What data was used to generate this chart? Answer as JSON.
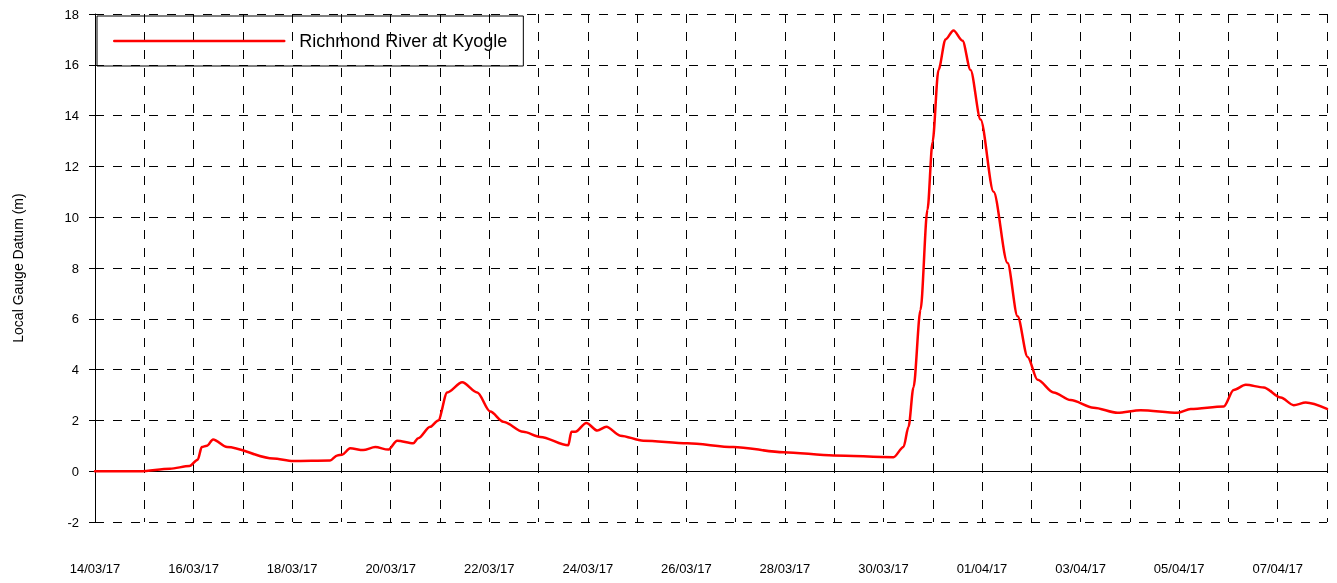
{
  "chart_data": {
    "type": "line",
    "ylabel": "Local Gauge Datum (m)",
    "x": [
      "--03-14T00:00",
      "--03-14T22:00",
      "--03-15T12:30",
      "--03-15T22:00",
      "--03-16T02:00",
      "--03-16T04:00",
      "--03-16T06:30",
      "--03-16T09:30",
      "--03-16T16:20",
      "--03-17T14:45",
      "--03-18T00:30",
      "--03-18T18:30",
      "--03-18T22:00",
      "--03-19T00:20",
      "--03-19T04:15",
      "--03-19T10:36",
      "--03-19T16:30",
      "--03-19T22:47",
      "--03-20T03:10",
      "--03-20T11:00",
      "--03-20T13:24",
      "--03-20T19:15",
      "--03-20T23:09",
      "--03-21T03:32",
      "--03-21T10:50",
      "--03-21T18:09",
      "--03-22T00:29",
      "--03-22T06:49",
      "--03-22T16:34",
      "--03-23T00:52",
      "--03-23T14:30",
      "--03-23T16:00",
      "--03-23T17:54",
      "--03-23T23:17",
      "--03-24T04:38",
      "--03-24T09:02",
      "--03-24T15:50",
      "--03-25T03:03",
      "--03-26T00:29",
      "--03-26T22:54",
      "--03-27T23:17",
      "--03-28T23:38",
      "--03-30T04:52",
      "--03-30T09:45",
      "--03-30T12:12",
      "--03-30T14:37",
      "--03-30T18:02",
      "--03-30T21:26",
      "--03-30T23:53",
      "--03-31T02:48",
      "--03-31T06:13",
      "--03-31T10:06",
      "--03-31T14:30",
      "--03-31T18:23",
      "--03-31T23:17",
      "--04-01T05:37",
      "--04-01T12:25",
      "--04-01T17:18",
      "--04-01T22:11",
      "--04-02T03:03",
      "--04-02T10:51",
      "--04-02T19:08",
      "--04-03T06:20",
      "--04-03T18:02",
      "--04-04T05:14",
      "--04-04T23:17",
      "--04-05T05:37",
      "--04-05T21:42",
      "--04-06T02:34",
      "--04-06T08:24",
      "--04-06T17:11",
      "--04-07T01:28",
      "--04-07T07:48",
      "--04-07T13:39",
      "--04-08T00:00"
    ],
    "series": [
      {
        "name": "Richmond River at Kyogle",
        "color": "#ff0000",
        "values": [
          0,
          0,
          0.1,
          0.2,
          0.45,
          0.95,
          1.0,
          1.25,
          0.95,
          0.5,
          0.4,
          0.42,
          0.62,
          0.65,
          0.9,
          0.83,
          0.95,
          0.85,
          1.2,
          1.1,
          1.3,
          1.75,
          2.0,
          3.1,
          3.5,
          3.1,
          2.35,
          1.95,
          1.55,
          1.35,
          1.02,
          1.55,
          1.55,
          1.9,
          1.6,
          1.75,
          1.4,
          1.2,
          1.1,
          0.95,
          0.75,
          0.62,
          0.55,
          0.95,
          1.75,
          3.3,
          6.35,
          10.3,
          12.95,
          15.8,
          17.0,
          17.35,
          16.95,
          15.8,
          13.85,
          11.0,
          8.2,
          6.1,
          4.5,
          3.6,
          3.1,
          2.8,
          2.5,
          2.3,
          2.4,
          2.3,
          2.45,
          2.55,
          3.2,
          3.4,
          3.3,
          2.9,
          2.6,
          2.7,
          2.45
        ]
      }
    ],
    "xlim": [
      "--03-14",
      "--04-08"
    ],
    "xticks": [
      {
        "value": "--03-14",
        "label": "14/03/17"
      },
      {
        "value": "--03-15",
        "label": null
      },
      {
        "value": "--03-16",
        "label": "16/03/17"
      },
      {
        "value": "--03-17",
        "label": null
      },
      {
        "value": "--03-18",
        "label": "18/03/17"
      },
      {
        "value": "--03-19",
        "label": null
      },
      {
        "value": "--03-20",
        "label": "20/03/17"
      },
      {
        "value": "--03-21",
        "label": null
      },
      {
        "value": "--03-22",
        "label": "22/03/17"
      },
      {
        "value": "--03-23",
        "label": null
      },
      {
        "value": "--03-24",
        "label": "24/03/17"
      },
      {
        "value": "--03-25",
        "label": null
      },
      {
        "value": "--03-26",
        "label": "26/03/17"
      },
      {
        "value": "--03-27",
        "label": null
      },
      {
        "value": "--03-28",
        "label": "28/03/17"
      },
      {
        "value": "--03-29",
        "label": null
      },
      {
        "value": "--03-30",
        "label": "30/03/17"
      },
      {
        "value": "--03-31",
        "label": null
      },
      {
        "value": "--04-01",
        "label": "01/04/17"
      },
      {
        "value": "--04-02",
        "label": null
      },
      {
        "value": "--04-03",
        "label": "03/04/17"
      },
      {
        "value": "--04-04",
        "label": null
      },
      {
        "value": "--04-05",
        "label": "05/04/17"
      },
      {
        "value": "--04-06",
        "label": null
      },
      {
        "value": "--04-07",
        "label": "07/04/17"
      },
      {
        "value": "--04-08",
        "label": null
      }
    ],
    "ylim": [
      -2,
      18
    ],
    "yticks": [
      -2,
      0,
      2,
      4,
      6,
      8,
      10,
      12,
      14,
      16,
      18
    ],
    "grid": true,
    "legend": "top left",
    "line_style": "solid",
    "marker": "none"
  }
}
